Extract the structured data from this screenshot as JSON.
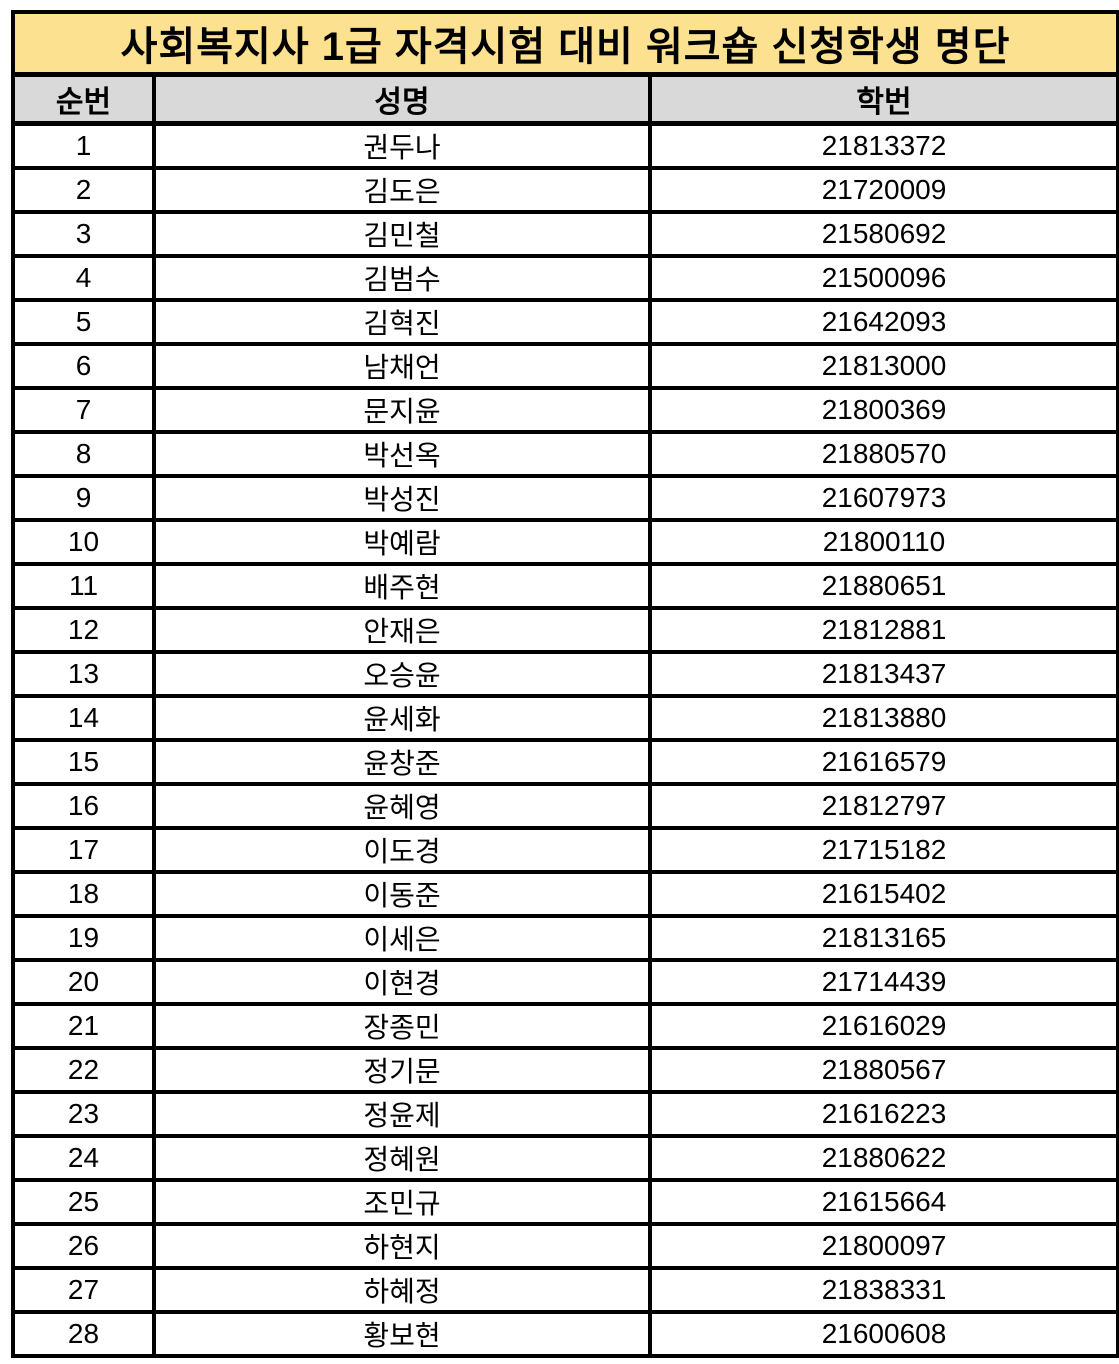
{
  "title": "사회복지사 1급 자격시험 대비 워크숍 신청학생 명단",
  "columns": [
    "순번",
    "성명",
    "학번"
  ],
  "colors": {
    "title_background": "#FBE190",
    "header_background": "#D9D9D9",
    "border": "#000000",
    "text": "#000000",
    "row_background": "#FFFFFF"
  },
  "students": [
    {
      "no": "1",
      "name": "권두나",
      "id": "21813372"
    },
    {
      "no": "2",
      "name": "김도은",
      "id": "21720009"
    },
    {
      "no": "3",
      "name": "김민철",
      "id": "21580692"
    },
    {
      "no": "4",
      "name": "김범수",
      "id": "21500096"
    },
    {
      "no": "5",
      "name": "김혁진",
      "id": "21642093"
    },
    {
      "no": "6",
      "name": "남채언",
      "id": "21813000"
    },
    {
      "no": "7",
      "name": "문지윤",
      "id": "21800369"
    },
    {
      "no": "8",
      "name": "박선옥",
      "id": "21880570"
    },
    {
      "no": "9",
      "name": "박성진",
      "id": "21607973"
    },
    {
      "no": "10",
      "name": "박예람",
      "id": "21800110"
    },
    {
      "no": "11",
      "name": "배주현",
      "id": "21880651"
    },
    {
      "no": "12",
      "name": "안재은",
      "id": "21812881"
    },
    {
      "no": "13",
      "name": "오승윤",
      "id": "21813437"
    },
    {
      "no": "14",
      "name": "윤세화",
      "id": "21813880"
    },
    {
      "no": "15",
      "name": "윤창준",
      "id": "21616579"
    },
    {
      "no": "16",
      "name": "윤혜영",
      "id": "21812797"
    },
    {
      "no": "17",
      "name": "이도경",
      "id": "21715182"
    },
    {
      "no": "18",
      "name": "이동준",
      "id": "21615402"
    },
    {
      "no": "19",
      "name": "이세은",
      "id": "21813165"
    },
    {
      "no": "20",
      "name": "이현경",
      "id": "21714439"
    },
    {
      "no": "21",
      "name": "장종민",
      "id": "21616029"
    },
    {
      "no": "22",
      "name": "정기문",
      "id": "21880567"
    },
    {
      "no": "23",
      "name": "정윤제",
      "id": "21616223"
    },
    {
      "no": "24",
      "name": "정혜원",
      "id": "21880622"
    },
    {
      "no": "25",
      "name": "조민규",
      "id": "21615664"
    },
    {
      "no": "26",
      "name": "하현지",
      "id": "21800097"
    },
    {
      "no": "27",
      "name": "하혜정",
      "id": "21838331"
    },
    {
      "no": "28",
      "name": "황보현",
      "id": "21600608"
    }
  ]
}
